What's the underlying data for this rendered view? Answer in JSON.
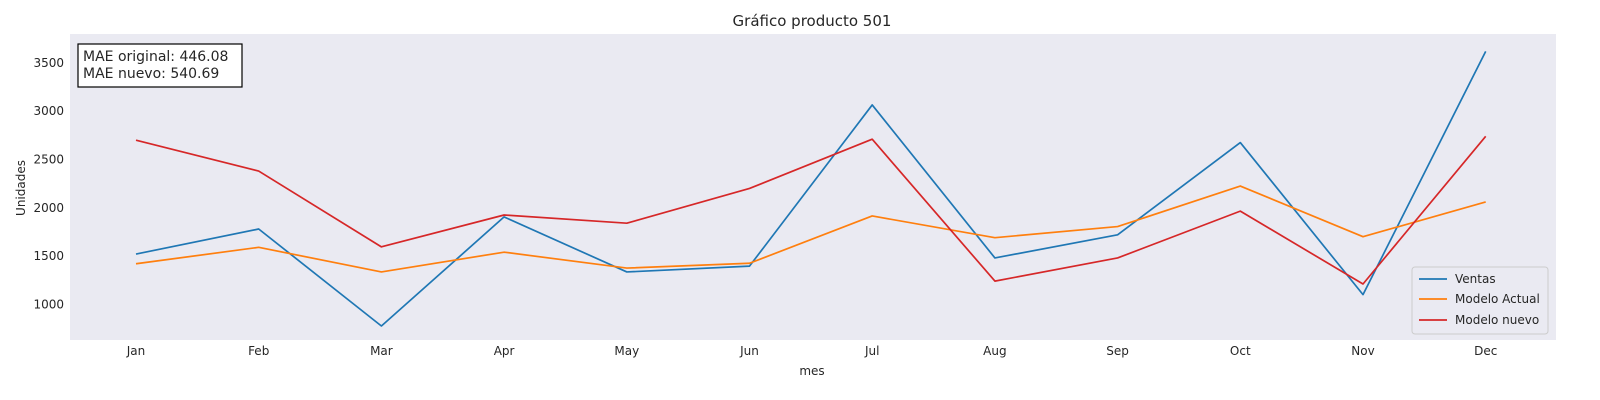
{
  "chart_data": {
    "type": "line",
    "title": "Gráfico producto 501",
    "xlabel": "mes",
    "ylabel": "Unidades",
    "categories": [
      "Jan",
      "Feb",
      "Mar",
      "Apr",
      "May",
      "Jun",
      "Jul",
      "Aug",
      "Sep",
      "Oct",
      "Nov",
      "Dec"
    ],
    "ylim": [
      630,
      3800
    ],
    "yticks": [
      1000,
      1500,
      2000,
      2500,
      3000,
      3500
    ],
    "grid": false,
    "legend_position": "bottom-right",
    "annotation": [
      "MAE original: 446.08",
      "MAE nuevo: 540.69"
    ],
    "series": [
      {
        "name": "Ventas",
        "color": "#1f77b4",
        "values": [
          1520,
          1780,
          775,
          1905,
          1335,
          1395,
          3065,
          1480,
          1720,
          2675,
          1100,
          3620
        ]
      },
      {
        "name": "Modelo Actual",
        "color": "#ff7f0e",
        "values": [
          1420,
          1590,
          1335,
          1540,
          1375,
          1425,
          1915,
          1690,
          1805,
          2225,
          1700,
          2060
        ]
      },
      {
        "name": "Modelo nuevo",
        "color": "#d62728",
        "values": [
          2700,
          2380,
          1595,
          1925,
          1840,
          2200,
          2710,
          1240,
          1480,
          1965,
          1210,
          2740
        ]
      }
    ]
  }
}
